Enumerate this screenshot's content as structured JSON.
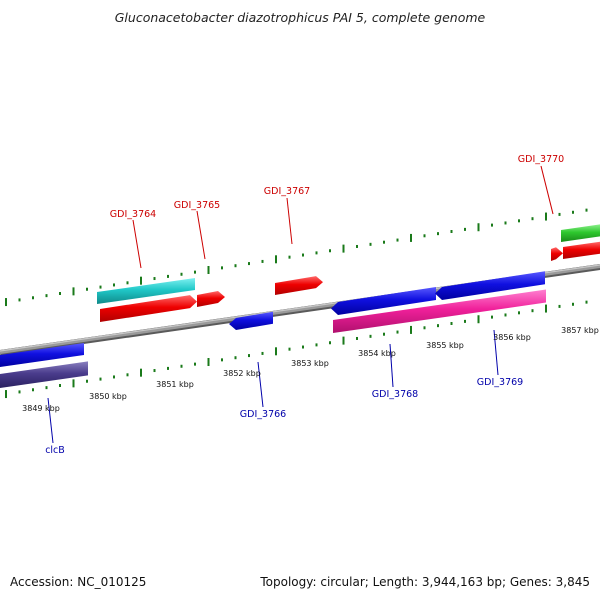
{
  "title": "Gluconacetobacter diazotrophicus PAI 5, complete genome",
  "footer": {
    "accession": "Accession: NC_010125",
    "stats": "Topology: circular; Length: 3,944,163 bp; Genes: 3,845"
  },
  "colors": {
    "backbone": "#8c8c8c",
    "forward_label": "#cc0000",
    "reverse_label": "#0000aa",
    "tick": "#1a7a1a"
  },
  "ticks": [
    {
      "label": "3849 kbp"
    },
    {
      "label": "3850 kbp"
    },
    {
      "label": "3851 kbp"
    },
    {
      "label": "3852 kbp"
    },
    {
      "label": "3853 kbp"
    },
    {
      "label": "3854 kbp"
    },
    {
      "label": "3855 kbp"
    },
    {
      "label": "3856 kbp"
    },
    {
      "label": "3857 kbp"
    }
  ],
  "gene_labels": [
    {
      "name": "GDI_3764",
      "strand": "forward"
    },
    {
      "name": "GDI_3765",
      "strand": "forward"
    },
    {
      "name": "GDI_3767",
      "strand": "forward"
    },
    {
      "name": "GDI_3770",
      "strand": "forward"
    },
    {
      "name": "clcB",
      "strand": "reverse"
    },
    {
      "name": "GDI_3766",
      "strand": "reverse"
    },
    {
      "name": "GDI_3768",
      "strand": "reverse"
    },
    {
      "name": "GDI_3769",
      "strand": "reverse"
    }
  ]
}
